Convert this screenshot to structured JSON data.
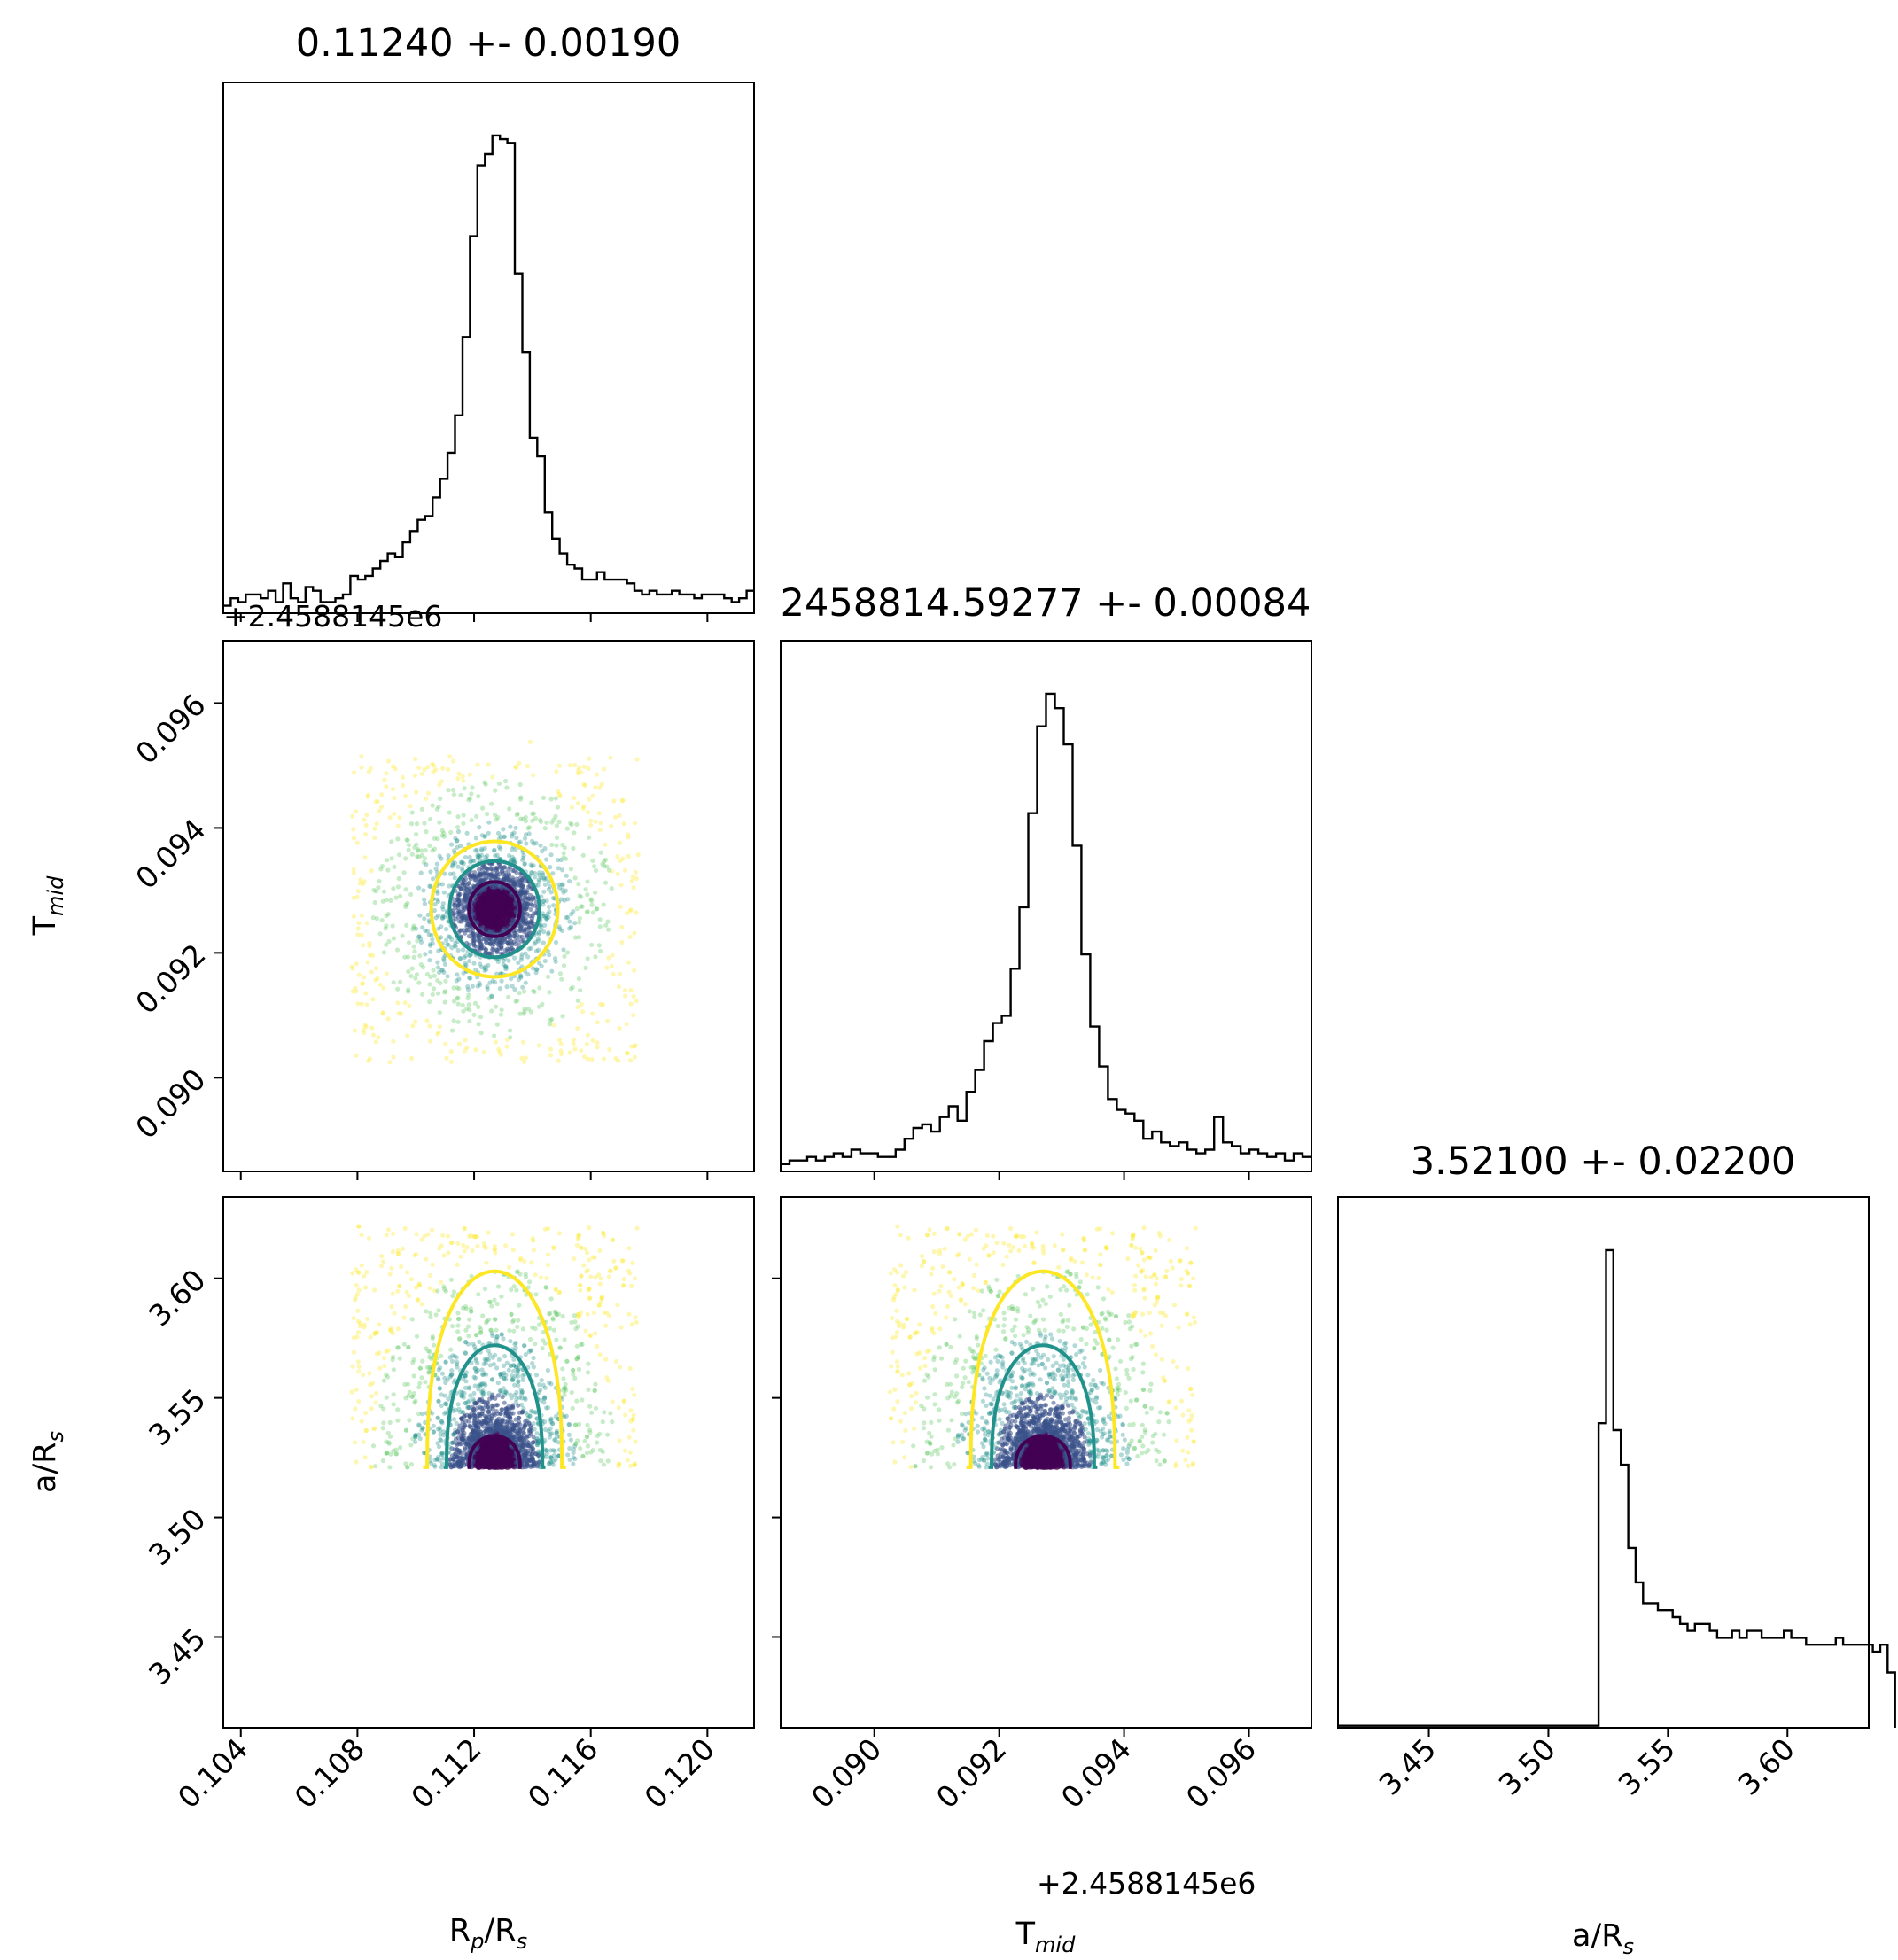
{
  "chart_data": {
    "type": "corner",
    "parameters": [
      {
        "id": "rp",
        "label_main": "R",
        "label_sub": "p",
        "label_tail": "/R",
        "label_sub2": "s",
        "title": "0.11240 +- 0.00190",
        "range": [
          0.1034,
          0.1216
        ],
        "ticks": [
          "0.104",
          "0.108",
          "0.112",
          "0.116",
          "0.120"
        ],
        "tick_values": [
          0.104,
          0.108,
          0.112,
          0.116,
          0.12
        ],
        "mean": 0.1127,
        "sigma_core": 0.0007,
        "histogram": [
          2,
          4,
          3,
          5,
          5,
          4,
          6,
          3,
          8,
          4,
          3,
          7,
          6,
          3,
          3,
          4,
          5,
          10,
          9,
          10,
          12,
          14,
          16,
          15,
          19,
          22,
          25,
          26,
          31,
          36,
          43,
          53,
          74,
          101,
          120,
          123,
          128,
          127,
          126,
          91,
          70,
          47,
          42,
          27,
          20,
          16,
          13,
          12,
          9,
          9,
          11,
          9,
          9,
          9,
          8,
          6,
          5,
          6,
          5,
          5,
          6,
          5,
          5,
          4,
          5,
          5,
          5,
          4,
          3,
          4,
          6
        ]
      },
      {
        "id": "tmid",
        "label_main": "T",
        "label_sub": "mid",
        "label_tail": "",
        "label_sub2": "",
        "title": "2458814.59277 +- 0.00084",
        "offset_text": "+2.4588145e6",
        "range": [
          0.0885,
          0.097
        ],
        "ticks": [
          "0.090",
          "0.092",
          "0.094",
          "0.096"
        ],
        "tick_values": [
          0.09,
          0.092,
          0.094,
          0.096
        ],
        "mean": 0.0927,
        "sigma_core": 0.00035,
        "histogram": [
          2,
          3,
          3,
          4,
          3,
          4,
          5,
          4,
          6,
          5,
          5,
          4,
          4,
          6,
          9,
          12,
          13,
          11,
          15,
          18,
          14,
          22,
          28,
          36,
          41,
          43,
          56,
          73,
          99,
          123,
          132,
          128,
          118,
          90,
          60,
          40,
          29,
          20,
          17,
          16,
          14,
          9,
          11,
          8,
          7,
          8,
          6,
          5,
          6,
          15,
          8,
          7,
          5,
          6,
          5,
          4,
          5,
          3,
          5,
          4
        ]
      },
      {
        "id": "ars",
        "label_main": "a/R",
        "label_sub": "s",
        "label_tail": "",
        "label_sub2": "",
        "title": "3.52100 +- 0.02200",
        "range": [
          3.412,
          3.634
        ],
        "ticks": [
          "3.45",
          "3.50",
          "3.55",
          "3.60"
        ],
        "tick_values": [
          3.45,
          3.5,
          3.55,
          3.6
        ],
        "mean": 3.5246,
        "lower_bound": 3.521,
        "histogram_start": 3.521,
        "histogram_bin": 0.0031,
        "histogram": [
          44,
          69,
          43,
          38,
          26,
          21,
          18,
          18,
          17,
          17,
          16,
          15,
          14,
          15,
          15,
          14,
          13,
          13,
          14,
          13,
          14,
          14,
          13,
          13,
          13,
          14,
          13,
          13,
          12,
          12,
          12,
          12,
          13,
          12,
          12,
          12,
          12,
          11,
          12,
          8
        ],
        "histogram_floor": 0.3
      }
    ],
    "contours": {
      "colors": [
        "#440154",
        "#21918c",
        "#fde725"
      ],
      "levels_sigma": [
        1,
        2,
        3
      ]
    },
    "scatter_colors": [
      "#fde725",
      "#5ec962",
      "#21918c",
      "#3b528b",
      "#440154"
    ]
  }
}
